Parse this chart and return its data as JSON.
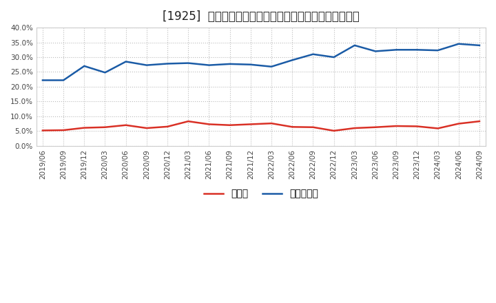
{
  "title": "[1925]  現預金、有利子負債の総資産に対する比率の推移",
  "x_labels": [
    "2019/06",
    "2019/09",
    "2019/12",
    "2020/03",
    "2020/06",
    "2020/09",
    "2020/12",
    "2021/03",
    "2021/06",
    "2021/09",
    "2021/12",
    "2022/03",
    "2022/06",
    "2022/09",
    "2022/12",
    "2023/03",
    "2023/06",
    "2023/09",
    "2023/12",
    "2024/03",
    "2024/06",
    "2024/09"
  ],
  "cash": [
    0.052,
    0.053,
    0.061,
    0.063,
    0.07,
    0.06,
    0.065,
    0.083,
    0.073,
    0.07,
    0.073,
    0.076,
    0.064,
    0.063,
    0.051,
    0.06,
    0.063,
    0.067,
    0.066,
    0.059,
    0.075,
    0.083
  ],
  "debt": [
    0.222,
    0.222,
    0.27,
    0.248,
    0.285,
    0.273,
    0.278,
    0.28,
    0.273,
    0.277,
    0.275,
    0.268,
    0.29,
    0.31,
    0.3,
    0.34,
    0.32,
    0.325,
    0.325,
    0.323,
    0.345,
    0.34
  ],
  "cash_color": "#d93025",
  "debt_color": "#1a5ba6",
  "background_color": "#ffffff",
  "plot_bg_color": "#ffffff",
  "grid_color": "#bbbbbb",
  "ylim": [
    0.0,
    0.4
  ],
  "yticks": [
    0.0,
    0.05,
    0.1,
    0.15,
    0.2,
    0.25,
    0.3,
    0.35,
    0.4
  ],
  "legend_cash": "現預金",
  "legend_debt": "有利子負債",
  "title_fontsize": 12,
  "tick_fontsize": 7.5,
  "legend_fontsize": 10
}
